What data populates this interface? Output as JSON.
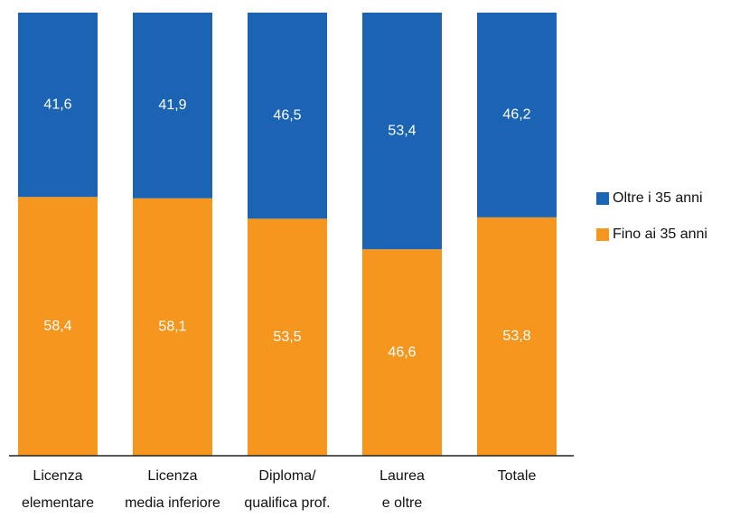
{
  "chart_data": {
    "type": "stacked_bar",
    "categories": [
      [
        "Licenza",
        "elementare"
      ],
      [
        "Licenza",
        "media inferiore"
      ],
      [
        "Diploma/",
        "qualifica prof."
      ],
      [
        "Laurea",
        "e oltre"
      ],
      [
        "Totale"
      ]
    ],
    "series": [
      {
        "name": "Fino ai 35 anni",
        "color": "#f5961e",
        "values": [
          58.4,
          58.1,
          53.5,
          46.6,
          53.8
        ],
        "value_labels": [
          "58,4",
          "58,1",
          "53,5",
          "46,6",
          "53,8"
        ]
      },
      {
        "name": "Oltre i 35 anni",
        "color": "#1b63b3",
        "values": [
          41.6,
          41.9,
          46.5,
          53.4,
          46.2
        ],
        "value_labels": [
          "41,6",
          "41,9",
          "46,5",
          "53,4",
          "46,2"
        ]
      }
    ],
    "legend": "right"
  }
}
